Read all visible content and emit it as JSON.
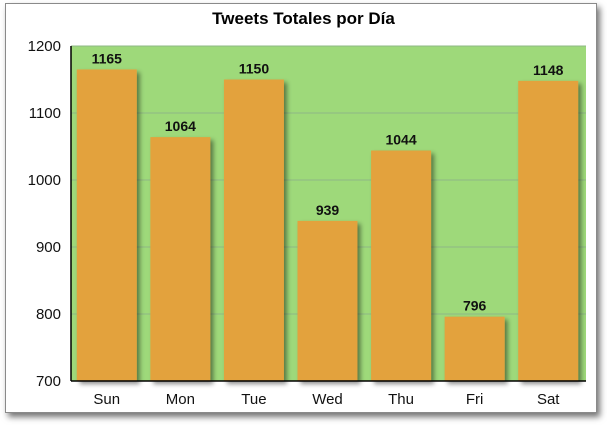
{
  "chart_data": {
    "type": "bar",
    "title": "Tweets Totales por Día",
    "xlabel": "",
    "ylabel": "",
    "categories": [
      "Sun",
      "Mon",
      "Tue",
      "Wed",
      "Thu",
      "Fri",
      "Sat"
    ],
    "values": [
      1165,
      1064,
      1150,
      939,
      1044,
      796,
      1148
    ],
    "data_labels": [
      "1165",
      "1064",
      "1150",
      "939",
      "1044",
      "796",
      "1148"
    ],
    "ylim": [
      700,
      1200
    ],
    "yticks": [
      700,
      800,
      900,
      1000,
      1100,
      1200
    ],
    "ytick_labels": [
      "700",
      "800",
      "900",
      "1000",
      "1100",
      "1200"
    ],
    "grid": true,
    "legend": "none",
    "colors": {
      "plot_background": "#9ed97a",
      "bar_fill": "#e3a23c",
      "gridline": "#8fb885",
      "axis": "#000000"
    }
  }
}
